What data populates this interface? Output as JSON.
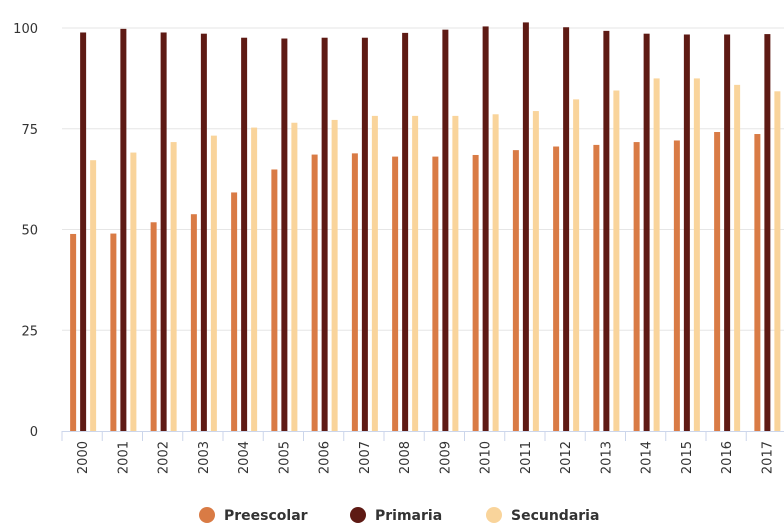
{
  "chart_data": {
    "type": "bar",
    "categories": [
      "2000",
      "2001",
      "2002",
      "2003",
      "2004",
      "2005",
      "2006",
      "2007",
      "2008",
      "2009",
      "2010",
      "2011",
      "2012",
      "2013",
      "2014",
      "2015",
      "2016",
      "2017"
    ],
    "series": [
      {
        "name": "Preescolar",
        "color": "#d97b45",
        "values": [
          48.9,
          49.0,
          51.8,
          53.8,
          59.2,
          64.9,
          68.6,
          68.9,
          68.1,
          68.1,
          68.5,
          69.7,
          70.6,
          71.0,
          71.7,
          72.1,
          74.2,
          73.7
        ]
      },
      {
        "name": "Primaria",
        "color": "#5e1a14",
        "values": [
          98.9,
          99.8,
          98.9,
          98.6,
          97.6,
          97.4,
          97.6,
          97.6,
          98.8,
          99.6,
          100.4,
          101.4,
          100.2,
          99.3,
          98.6,
          98.4,
          98.4,
          98.5
        ]
      },
      {
        "name": "Secundaria",
        "color": "#f9d49b",
        "values": [
          67.2,
          69.1,
          71.7,
          73.3,
          75.3,
          76.5,
          77.2,
          78.2,
          78.2,
          78.2,
          78.6,
          79.4,
          82.3,
          84.5,
          87.5,
          87.5,
          85.9,
          84.3
        ]
      }
    ],
    "yticks": [
      0,
      25,
      50,
      75,
      100
    ],
    "ylim": [
      0,
      101.5
    ],
    "grid": true,
    "legend_position": "bottom-center",
    "title": "",
    "xlabel": "",
    "ylabel": ""
  }
}
